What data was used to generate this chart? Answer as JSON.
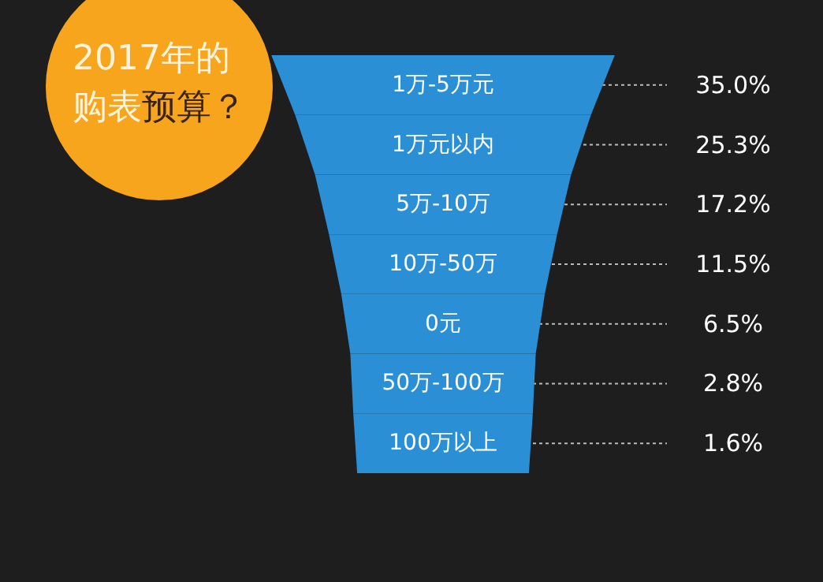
{
  "chart_data": {
    "type": "other",
    "title": "2017年的购表预算？",
    "categories": [
      "1万-5万元",
      "1万元以内",
      "5万-10万",
      "10万-50万",
      "0元",
      "50万-100万",
      "100万以上"
    ],
    "values": [
      35.0,
      25.3,
      17.2,
      11.5,
      6.5,
      2.8,
      1.6
    ],
    "value_labels": [
      "35.0%",
      "25.3%",
      "17.2%",
      "11.5%",
      "6.5%",
      "2.8%",
      "1.6%"
    ],
    "color": "#2a8fd4"
  }
}
